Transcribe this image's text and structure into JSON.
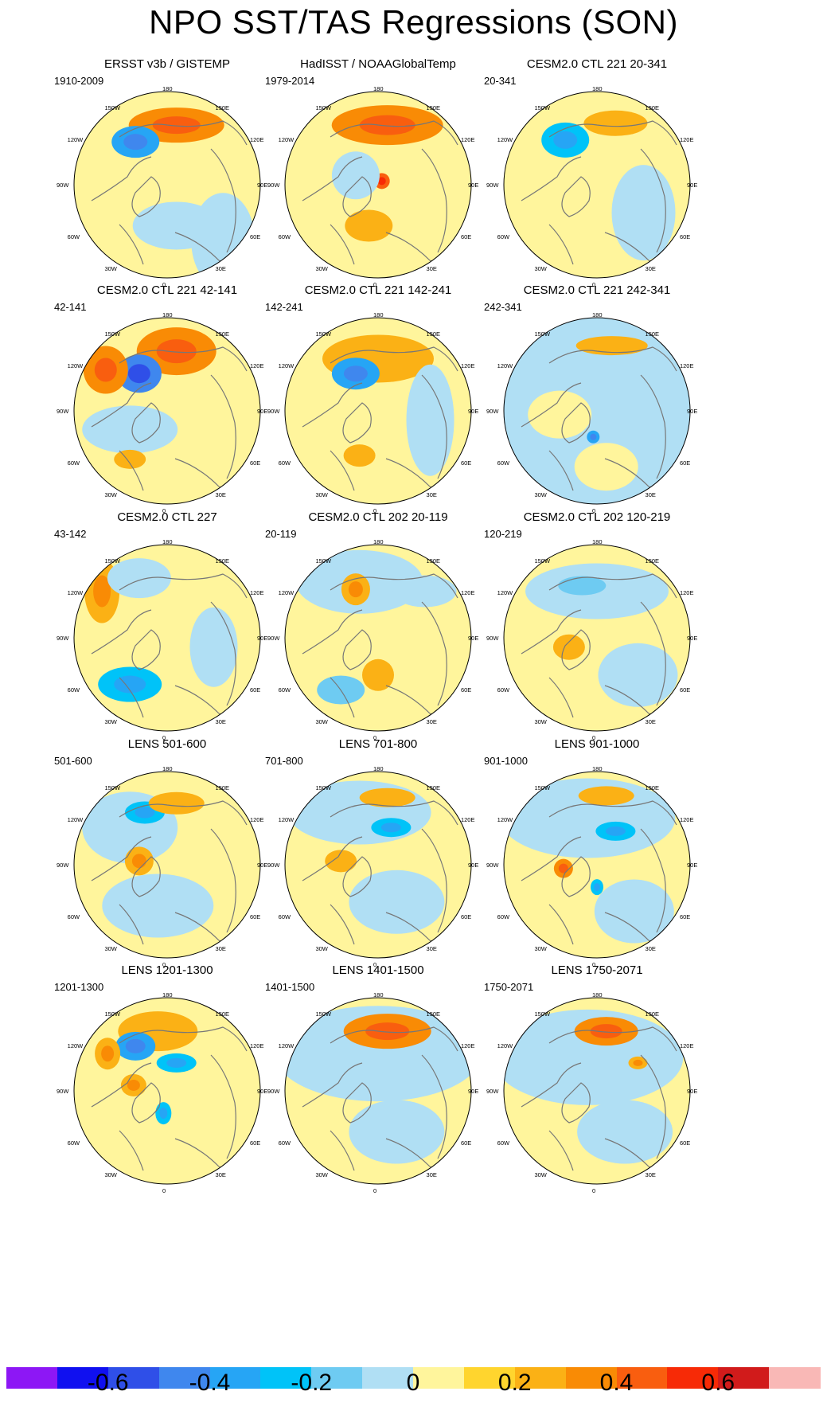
{
  "title": "NPO SST/TAS Regressions (SON)",
  "lon_labels": {
    "top": "180",
    "bottom": "0",
    "left_upper2": "150W",
    "left_upper1": "120W",
    "left_mid": "90W",
    "left_lower1": "60W",
    "left_lower2": "30W",
    "right_upper2": "150E",
    "right_upper1": "120E",
    "right_mid": "90E",
    "right_lower1": "60E",
    "right_lower2": "30E"
  },
  "panels": [
    {
      "title": "ERSST v3b / GISTEMP",
      "range": "1910-2009",
      "pattern": [
        [
          "o",
          0.55,
          0.18,
          60,
          22,
          0.3
        ],
        [
          "b",
          0.33,
          0.27,
          30,
          20,
          -0.35
        ],
        [
          "lb",
          0.55,
          0.72,
          55,
          30,
          -0.1
        ],
        [
          "lb",
          0.8,
          0.8,
          40,
          60,
          -0.1
        ]
      ]
    },
    {
      "title": "HadISST / NOAAGlobalTemp",
      "range": "1979-2014",
      "pattern": [
        [
          "o",
          0.55,
          0.18,
          70,
          25,
          0.35
        ],
        [
          "r",
          0.52,
          0.48,
          10,
          10,
          0.45
        ],
        [
          "lb",
          0.38,
          0.45,
          30,
          30,
          -0.1
        ],
        [
          "o",
          0.45,
          0.72,
          30,
          20,
          0.2
        ]
      ]
    },
    {
      "title": "CESM2.0 CTL 221 20-341",
      "range": "20-341",
      "pattern": [
        [
          "o",
          0.6,
          0.17,
          40,
          16,
          0.2
        ],
        [
          "b",
          0.33,
          0.26,
          30,
          22,
          -0.3
        ],
        [
          "lb",
          0.75,
          0.65,
          40,
          60,
          -0.1
        ]
      ]
    },
    {
      "title": "CESM2.0 CTL 221 42-141",
      "range": "42-141",
      "pattern": [
        [
          "o",
          0.55,
          0.18,
          50,
          30,
          0.3
        ],
        [
          "b",
          0.35,
          0.3,
          28,
          24,
          -0.45
        ],
        [
          "o",
          0.17,
          0.28,
          28,
          30,
          0.3
        ],
        [
          "lb",
          0.3,
          0.6,
          60,
          30,
          -0.1
        ],
        [
          "o",
          0.3,
          0.76,
          20,
          12,
          0.2
        ]
      ]
    },
    {
      "title": "CESM2.0 CTL 221 142-241",
      "range": "142-241",
      "pattern": [
        [
          "o",
          0.5,
          0.22,
          70,
          30,
          0.2
        ],
        [
          "b",
          0.38,
          0.3,
          30,
          20,
          -0.35
        ],
        [
          "lb",
          0.78,
          0.55,
          30,
          70,
          -0.1
        ],
        [
          "o",
          0.4,
          0.74,
          20,
          14,
          0.2
        ]
      ]
    },
    {
      "title": "CESM2.0 CTL 221 242-341",
      "range": "242-341",
      "pattern": [
        [
          "lb",
          0.5,
          0.5,
          140,
          140,
          -0.1
        ],
        [
          "o",
          0.58,
          0.15,
          45,
          12,
          0.2
        ],
        [
          "y",
          0.3,
          0.52,
          40,
          30,
          0.05
        ],
        [
          "y",
          0.55,
          0.8,
          40,
          30,
          0.05
        ],
        [
          "b",
          0.48,
          0.64,
          8,
          8,
          -0.35
        ]
      ]
    },
    {
      "title": "CESM2.0 CTL 227",
      "range": "43-142",
      "pattern": [
        [
          "o",
          0.15,
          0.25,
          22,
          40,
          0.25
        ],
        [
          "lb",
          0.35,
          0.18,
          40,
          25,
          -0.1
        ],
        [
          "b",
          0.3,
          0.75,
          40,
          22,
          -0.3
        ],
        [
          "lb",
          0.75,
          0.55,
          30,
          50,
          -0.1
        ]
      ]
    },
    {
      "title": "CESM2.0 CTL 202 20-119",
      "range": "20-119",
      "pattern": [
        [
          "lb",
          0.4,
          0.2,
          80,
          40,
          -0.1
        ],
        [
          "o",
          0.38,
          0.24,
          18,
          20,
          0.25
        ],
        [
          "lb",
          0.75,
          0.25,
          40,
          20,
          -0.1
        ],
        [
          "b",
          0.3,
          0.78,
          30,
          18,
          -0.2
        ],
        [
          "o",
          0.5,
          0.7,
          20,
          20,
          0.2
        ]
      ]
    },
    {
      "title": "CESM2.0 CTL 202 120-219",
      "range": "120-219",
      "pattern": [
        [
          "lb",
          0.5,
          0.25,
          90,
          35,
          -0.1
        ],
        [
          "b",
          0.42,
          0.22,
          30,
          12,
          -0.2
        ],
        [
          "o",
          0.35,
          0.55,
          20,
          16,
          0.2
        ],
        [
          "lb",
          0.72,
          0.7,
          50,
          40,
          -0.1
        ]
      ]
    },
    {
      "title": "LENS 501-600",
      "range": "501-600",
      "pattern": [
        [
          "lb",
          0.3,
          0.3,
          60,
          45,
          -0.1
        ],
        [
          "b",
          0.38,
          0.22,
          25,
          14,
          -0.25
        ],
        [
          "o",
          0.55,
          0.17,
          35,
          14,
          0.2
        ],
        [
          "o",
          0.35,
          0.48,
          18,
          18,
          0.25
        ],
        [
          "lb",
          0.45,
          0.72,
          70,
          40,
          -0.1
        ]
      ]
    },
    {
      "title": "LENS 701-800",
      "range": "701-800",
      "pattern": [
        [
          "lb",
          0.4,
          0.22,
          90,
          40,
          -0.1
        ],
        [
          "o",
          0.55,
          0.14,
          35,
          12,
          0.2
        ],
        [
          "b",
          0.57,
          0.3,
          25,
          12,
          -0.25
        ],
        [
          "o",
          0.3,
          0.48,
          20,
          14,
          0.2
        ],
        [
          "lb",
          0.6,
          0.7,
          60,
          40,
          -0.1
        ]
      ]
    },
    {
      "title": "LENS 901-1000",
      "range": "901-1000",
      "pattern": [
        [
          "lb",
          0.45,
          0.25,
          110,
          50,
          -0.1
        ],
        [
          "o",
          0.55,
          0.13,
          35,
          12,
          0.2
        ],
        [
          "b",
          0.6,
          0.32,
          25,
          12,
          -0.25
        ],
        [
          "o",
          0.32,
          0.52,
          12,
          12,
          0.3
        ],
        [
          "b",
          0.5,
          0.62,
          8,
          10,
          -0.3
        ],
        [
          "lb",
          0.7,
          0.75,
          50,
          40,
          -0.1
        ]
      ]
    },
    {
      "title": "LENS 1201-1300",
      "range": "1201-1300",
      "pattern": [
        [
          "o",
          0.45,
          0.18,
          50,
          25,
          0.2
        ],
        [
          "b",
          0.33,
          0.26,
          25,
          18,
          -0.35
        ],
        [
          "o",
          0.18,
          0.3,
          16,
          20,
          0.25
        ],
        [
          "b",
          0.55,
          0.35,
          25,
          12,
          -0.3
        ],
        [
          "b",
          0.48,
          0.62,
          10,
          14,
          -0.3
        ],
        [
          "o",
          0.32,
          0.47,
          16,
          14,
          0.25
        ]
      ]
    },
    {
      "title": "LENS 1401-1500",
      "range": "1401-1500",
      "pattern": [
        [
          "lb",
          0.5,
          0.3,
          130,
          60,
          -0.1
        ],
        [
          "o",
          0.55,
          0.18,
          55,
          22,
          0.3
        ],
        [
          "lb",
          0.6,
          0.72,
          60,
          40,
          -0.1
        ]
      ]
    },
    {
      "title": "LENS 1750-2071",
      "range": "1750-2071",
      "pattern": [
        [
          "lb",
          0.45,
          0.32,
          120,
          60,
          -0.1
        ],
        [
          "o",
          0.55,
          0.18,
          40,
          18,
          0.3
        ],
        [
          "o",
          0.72,
          0.35,
          12,
          8,
          0.25
        ],
        [
          "lb",
          0.65,
          0.72,
          60,
          40,
          -0.1
        ]
      ]
    }
  ],
  "colorbar": {
    "colors": [
      "#8d17f5",
      "#1010f0",
      "#2f4fe8",
      "#3f87ee",
      "#26a5f5",
      "#00c3f8",
      "#6ecbf2",
      "#b0dff4",
      "#fff59c",
      "#ffd52e",
      "#fbb115",
      "#f98b05",
      "#f95e0f",
      "#f72a06",
      "#d11b1b",
      "#f9b8b6"
    ],
    "ticks": [
      "-0.6",
      "-0.4",
      "-0.2",
      "0",
      "0.2",
      "0.4",
      "0.6"
    ]
  }
}
